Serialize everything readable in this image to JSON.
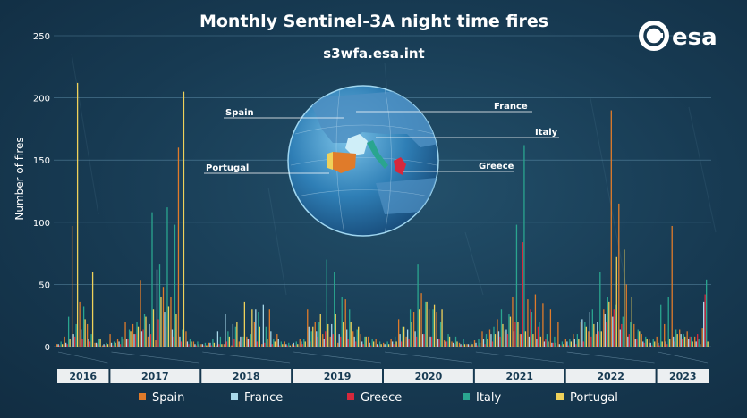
{
  "chart_data": {
    "type": "bar",
    "title": "Monthly Sentinel-3A night time fires",
    "subtitle": "s3wfa.esa.int",
    "ylabel": "Number of fires",
    "xlabel": "",
    "ylim": [
      0,
      250
    ],
    "yticks": [
      0,
      50,
      100,
      150,
      200,
      250
    ],
    "grid": true,
    "legend_position": "bottom",
    "logo": "esa",
    "years": [
      "2016",
      "2017",
      "2018",
      "2019",
      "2020",
      "2021",
      "2022",
      "2023"
    ],
    "year_month_counts": [
      7,
      12,
      12,
      12,
      12,
      12,
      12,
      7
    ],
    "countries_on_globe": [
      "Spain",
      "France",
      "Italy",
      "Portugal",
      "Greece"
    ],
    "series": [
      {
        "name": "Spain",
        "color": "#e07b2a",
        "values": [
          2,
          8,
          97,
          36,
          18,
          3,
          1,
          10,
          6,
          20,
          18,
          53,
          8,
          5,
          48,
          40,
          160,
          12,
          4,
          2,
          3,
          1,
          2,
          1,
          4,
          8,
          20,
          2,
          30,
          10,
          4,
          2,
          6,
          30,
          20,
          10,
          8,
          3,
          38,
          12,
          10,
          8,
          6,
          3,
          6,
          22,
          8,
          28,
          43,
          30,
          28,
          5,
          4,
          3,
          2,
          5,
          12,
          14,
          22,
          12,
          40,
          10,
          38,
          42,
          35,
          30,
          20,
          6,
          10,
          20,
          12,
          10,
          30,
          190,
          115,
          50,
          18,
          10,
          6,
          8,
          18,
          97,
          14,
          12,
          8,
          15
        ]
      },
      {
        "name": "France",
        "color": "#a8d8ea",
        "values": [
          2,
          3,
          10,
          14,
          6,
          3,
          2,
          3,
          4,
          6,
          10,
          12,
          18,
          62,
          28,
          14,
          8,
          4,
          2,
          2,
          3,
          12,
          26,
          18,
          8,
          6,
          30,
          34,
          12,
          6,
          2,
          3,
          4,
          16,
          12,
          6,
          18,
          10,
          14,
          8,
          4,
          3,
          2,
          2,
          4,
          10,
          14,
          12,
          10,
          8,
          6,
          4,
          3,
          2,
          2,
          3,
          6,
          10,
          12,
          14,
          12,
          10,
          8,
          6,
          4,
          3,
          2,
          4,
          6,
          22,
          28,
          20,
          26,
          24,
          14,
          8,
          6,
          4,
          3,
          3,
          4,
          8,
          10,
          6,
          4,
          36
        ]
      },
      {
        "name": "Greece",
        "color": "#d6283c",
        "values": [
          1,
          2,
          8,
          6,
          4,
          2,
          1,
          1,
          2,
          6,
          10,
          14,
          10,
          22,
          16,
          8,
          4,
          2,
          1,
          1,
          1,
          2,
          4,
          6,
          8,
          6,
          4,
          3,
          2,
          1,
          1,
          1,
          2,
          4,
          8,
          12,
          10,
          8,
          6,
          4,
          2,
          1,
          1,
          1,
          2,
          4,
          6,
          8,
          10,
          8,
          6,
          4,
          2,
          1,
          1,
          1,
          2,
          4,
          8,
          10,
          20,
          84,
          30,
          16,
          6,
          3,
          1,
          1,
          2,
          4,
          8,
          12,
          20,
          30,
          18,
          10,
          6,
          3,
          1,
          1,
          2,
          4,
          6,
          8,
          10,
          42
        ]
      },
      {
        "name": "Italy",
        "color": "#2aa58f",
        "values": [
          4,
          24,
          18,
          32,
          10,
          6,
          3,
          4,
          8,
          14,
          20,
          26,
          108,
          66,
          112,
          98,
          14,
          6,
          4,
          3,
          6,
          8,
          12,
          16,
          8,
          10,
          28,
          16,
          6,
          4,
          3,
          4,
          6,
          12,
          20,
          70,
          60,
          40,
          30,
          14,
          8,
          6,
          4,
          4,
          8,
          16,
          30,
          66,
          36,
          30,
          20,
          10,
          8,
          6,
          4,
          6,
          10,
          16,
          30,
          26,
          98,
          162,
          28,
          20,
          10,
          8,
          4,
          6,
          10,
          20,
          30,
          60,
          40,
          34,
          24,
          20,
          14,
          8,
          6,
          34,
          40,
          14,
          10,
          8,
          6,
          54
        ]
      },
      {
        "name": "Portugal",
        "color": "#efd15a",
        "values": [
          2,
          6,
          212,
          22,
          60,
          6,
          2,
          3,
          6,
          12,
          16,
          24,
          30,
          40,
          32,
          26,
          205,
          4,
          2,
          1,
          3,
          2,
          8,
          20,
          36,
          30,
          16,
          6,
          4,
          2,
          1,
          2,
          4,
          16,
          26,
          18,
          26,
          20,
          20,
          16,
          8,
          4,
          2,
          2,
          4,
          16,
          20,
          30,
          36,
          34,
          30,
          8,
          4,
          2,
          2,
          3,
          6,
          10,
          18,
          24,
          20,
          12,
          10,
          8,
          4,
          3,
          2,
          4,
          6,
          16,
          18,
          12,
          36,
          72,
          78,
          40,
          12,
          6,
          4,
          4,
          6,
          10,
          8,
          4,
          2,
          4
        ]
      }
    ]
  }
}
